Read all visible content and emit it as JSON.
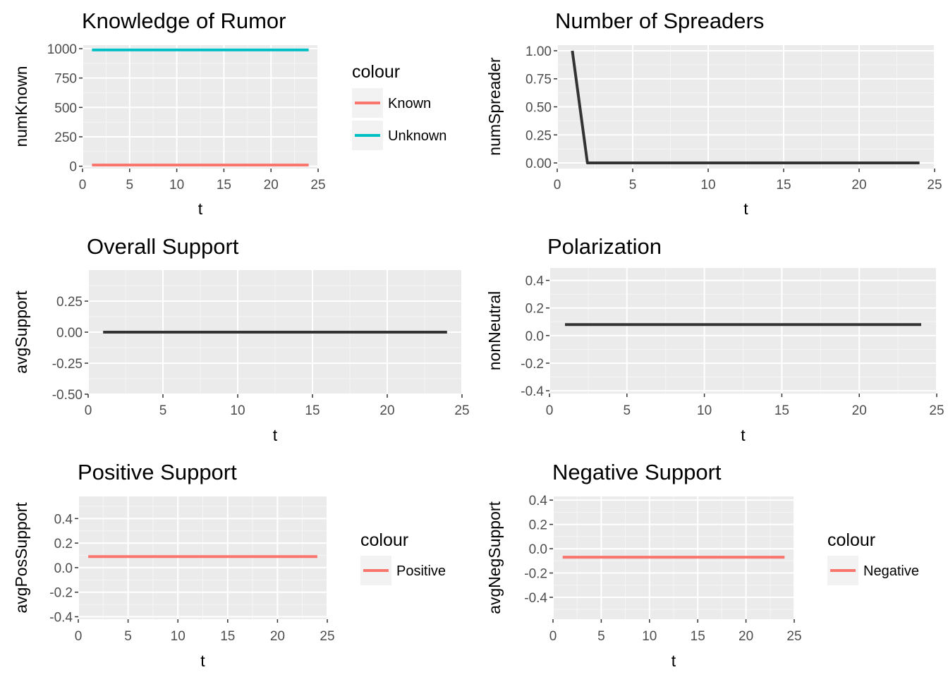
{
  "chart_data": [
    {
      "id": "knowledge",
      "type": "line",
      "title": "Knowledge of Rumor",
      "xlabel": "t",
      "ylabel": "numKnown",
      "xlim": [
        0,
        25
      ],
      "ylim": [
        -20,
        1030
      ],
      "xticks": [
        0,
        5,
        10,
        15,
        20,
        25
      ],
      "yticks": [
        0,
        250,
        500,
        750,
        1000
      ],
      "ytick_labels": [
        "0",
        "250",
        "500",
        "750",
        "1000"
      ],
      "grid": true,
      "legend": {
        "title": "colour",
        "placement": "right",
        "entries": [
          "Known",
          "Unknown"
        ]
      },
      "series": [
        {
          "name": "Known",
          "color": "#F8766D",
          "x": [
            1,
            24
          ],
          "y": [
            10,
            10
          ]
        },
        {
          "name": "Unknown",
          "color": "#00BFC4",
          "x": [
            1,
            24
          ],
          "y": [
            990,
            990
          ]
        }
      ]
    },
    {
      "id": "spreaders",
      "type": "line",
      "title": "Number of Spreaders",
      "xlabel": "t",
      "ylabel": "numSpreader",
      "xlim": [
        0,
        25
      ],
      "ylim": [
        -0.05,
        1.05
      ],
      "xticks": [
        0,
        5,
        10,
        15,
        20,
        25
      ],
      "yticks": [
        0,
        0.25,
        0.5,
        0.75,
        1
      ],
      "ytick_labels": [
        "0.00",
        "0.25",
        "0.50",
        "0.75",
        "1.00"
      ],
      "grid": true,
      "series": [
        {
          "color": "#333333",
          "x": [
            1,
            2,
            24
          ],
          "y": [
            1,
            0,
            0
          ]
        }
      ]
    },
    {
      "id": "overall",
      "type": "line",
      "title": "Overall Support",
      "xlabel": "t",
      "ylabel": "avgSupport",
      "xlim": [
        0,
        25
      ],
      "ylim": [
        -0.5,
        0.5
      ],
      "xticks": [
        0,
        5,
        10,
        15,
        20,
        25
      ],
      "yticks": [
        -0.5,
        -0.25,
        0,
        0.25
      ],
      "ytick_labels": [
        "-0.50",
        "-0.25",
        "0.00",
        "0.25"
      ],
      "grid": true,
      "series": [
        {
          "color": "#333333",
          "x": [
            1,
            24
          ],
          "y": [
            0,
            0
          ]
        }
      ]
    },
    {
      "id": "polarization",
      "type": "line",
      "title": "Polarization",
      "xlabel": "t",
      "ylabel": "nonNeutral",
      "xlim": [
        0,
        25
      ],
      "ylim": [
        -0.42,
        0.49
      ],
      "xticks": [
        0,
        5,
        10,
        15,
        20,
        25
      ],
      "yticks": [
        -0.4,
        -0.2,
        0,
        0.2,
        0.4
      ],
      "ytick_labels": [
        "-0.4",
        "-0.2",
        "0.0",
        "0.2",
        "0.4"
      ],
      "grid": true,
      "series": [
        {
          "color": "#333333",
          "x": [
            1,
            24
          ],
          "y": [
            0.08,
            0.08
          ]
        }
      ]
    },
    {
      "id": "positive",
      "type": "line",
      "title": "Positive Support",
      "xlabel": "t",
      "ylabel": "avgPosSupport",
      "xlim": [
        0,
        25
      ],
      "ylim": [
        -0.42,
        0.58
      ],
      "xticks": [
        0,
        5,
        10,
        15,
        20,
        25
      ],
      "yticks": [
        -0.4,
        -0.2,
        0,
        0.2,
        0.4
      ],
      "ytick_labels": [
        "-0.4",
        "-0.2",
        "0.0",
        "0.2",
        "0.4"
      ],
      "grid": true,
      "legend": {
        "title": "colour",
        "placement": "right",
        "entries": [
          "Positive"
        ]
      },
      "series": [
        {
          "name": "Positive",
          "color": "#F8766D",
          "x": [
            1,
            24
          ],
          "y": [
            0.09,
            0.09
          ]
        }
      ]
    },
    {
      "id": "negative",
      "type": "line",
      "title": "Negative Support",
      "xlabel": "t",
      "ylabel": "avgNegSupport",
      "xlim": [
        0,
        25
      ],
      "ylim": [
        -0.58,
        0.43
      ],
      "xticks": [
        0,
        5,
        10,
        15,
        20,
        25
      ],
      "yticks": [
        -0.4,
        -0.2,
        0,
        0.2,
        0.4
      ],
      "ytick_labels": [
        "-0.4",
        "-0.2",
        "0.0",
        "0.2",
        "0.4"
      ],
      "grid": true,
      "legend": {
        "title": "colour",
        "placement": "right",
        "entries": [
          "Negative"
        ]
      },
      "series": [
        {
          "name": "Negative",
          "color": "#F8766D",
          "x": [
            1,
            24
          ],
          "y": [
            -0.07,
            -0.07
          ]
        }
      ]
    }
  ]
}
